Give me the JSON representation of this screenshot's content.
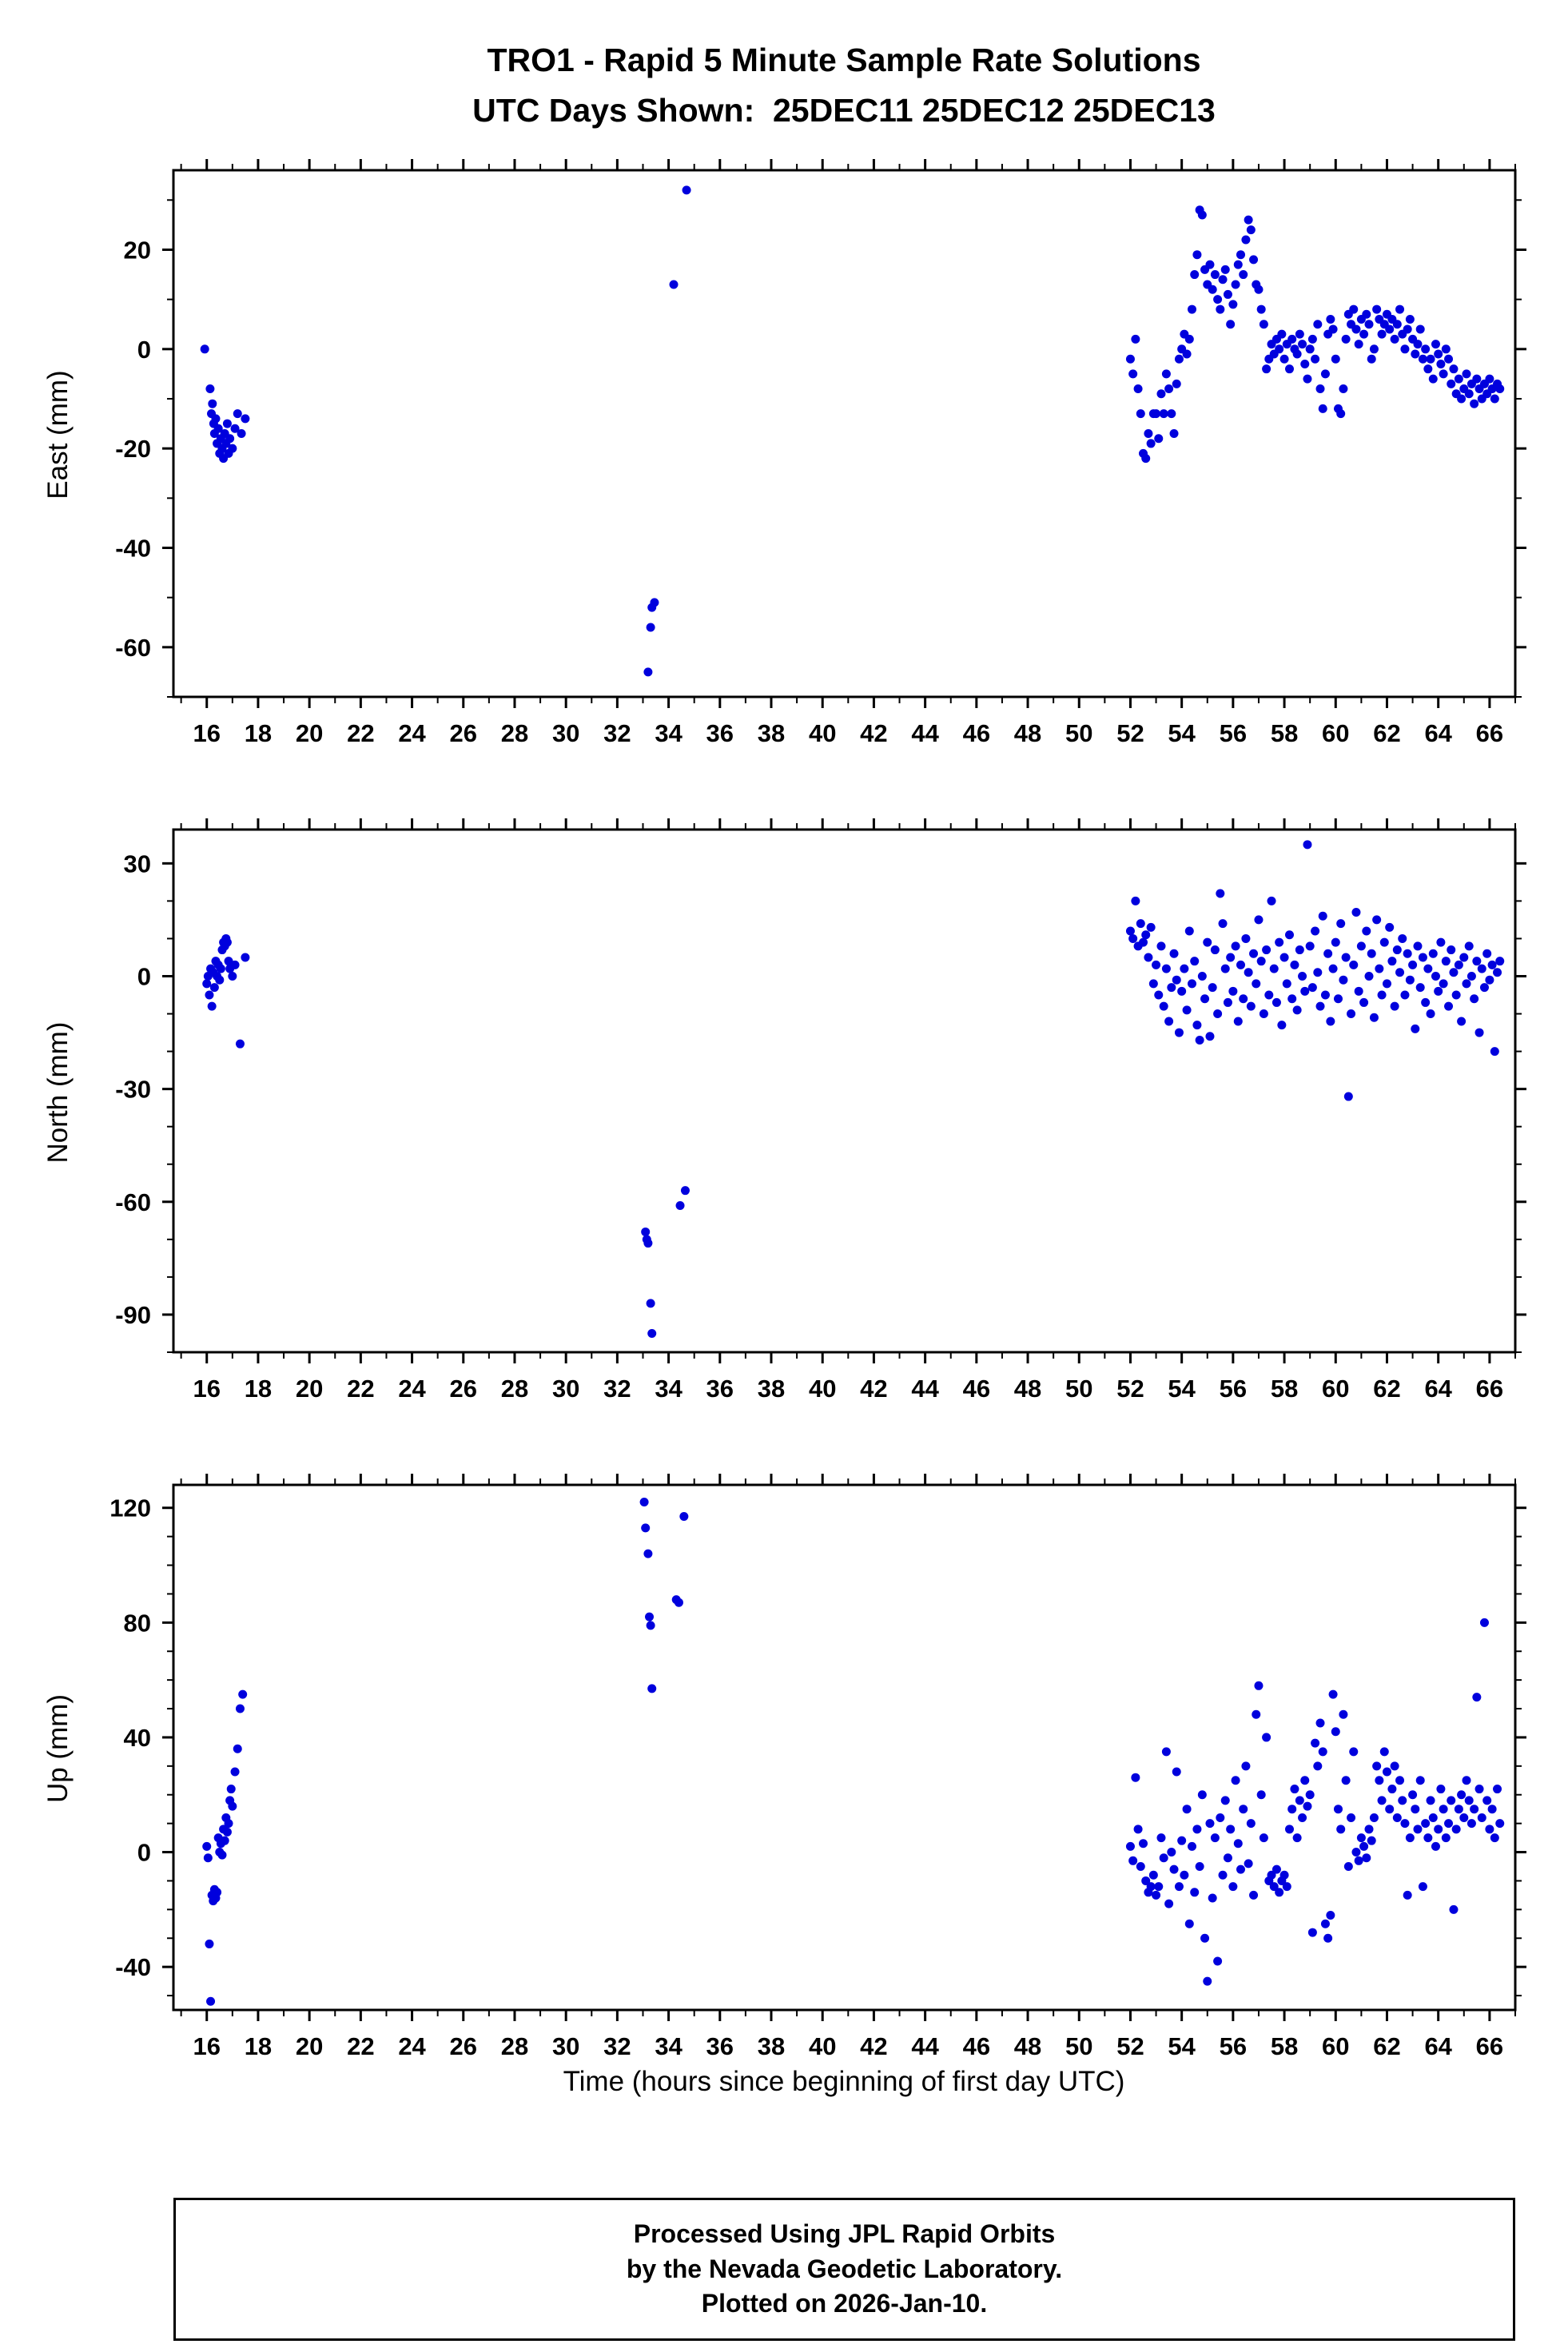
{
  "title": {
    "line1": "TRO1 - Rapid 5 Minute Sample Rate Solutions",
    "line2": "UTC Days Shown:  25DEC11 25DEC12 25DEC13"
  },
  "axis": {
    "xlabel": "Time (hours since beginning of first day UTC)"
  },
  "footer": {
    "line1": "Processed Using JPL Rapid Orbits",
    "line2": "by the Nevada Geodetic Laboratory.",
    "line3": "Plotted on 2026-Jan-10."
  },
  "colors": {
    "point": "#0000dd",
    "axis": "#000000",
    "background": "#ffffff"
  },
  "chart_data": {
    "type": "scatter",
    "point_color": "#0000dd",
    "x_axis": {
      "min": 14.7,
      "max": 67.0,
      "ticks": [
        16,
        18,
        20,
        22,
        24,
        26,
        28,
        30,
        32,
        34,
        36,
        38,
        40,
        42,
        44,
        46,
        48,
        50,
        52,
        54,
        56,
        58,
        60,
        62,
        64,
        66
      ],
      "minor_step": 1
    },
    "panels": [
      {
        "name": "east",
        "ylabel": "East (mm)",
        "ylim": [
          -70,
          36
        ],
        "yticks": [
          20,
          0,
          -20,
          -40,
          -60
        ],
        "yminor_step": 10,
        "points": [
          [
            15.92,
            0
          ],
          [
            16.13,
            -8
          ],
          [
            16.18,
            -13
          ],
          [
            16.22,
            -11
          ],
          [
            16.27,
            -15
          ],
          [
            16.3,
            -17
          ],
          [
            16.35,
            -14
          ],
          [
            16.4,
            -19
          ],
          [
            16.45,
            -16
          ],
          [
            16.5,
            -21
          ],
          [
            16.55,
            -18
          ],
          [
            16.6,
            -20
          ],
          [
            16.65,
            -22
          ],
          [
            16.7,
            -17
          ],
          [
            16.75,
            -19
          ],
          [
            16.8,
            -15
          ],
          [
            16.85,
            -21
          ],
          [
            16.9,
            -18
          ],
          [
            17.0,
            -20
          ],
          [
            17.1,
            -16
          ],
          [
            17.2,
            -13
          ],
          [
            17.35,
            -17
          ],
          [
            17.5,
            -14
          ],
          [
            33.2,
            -65
          ],
          [
            33.3,
            -56
          ],
          [
            33.35,
            -52
          ],
          [
            33.45,
            -51
          ],
          [
            34.2,
            13
          ],
          [
            34.7,
            32
          ]
        ],
        "trace": {
          "x0": 52.0,
          "dx": 0.1,
          "y": [
            -2,
            -5,
            2,
            -8,
            -13,
            -21,
            -22,
            -17,
            -19,
            -13,
            -13,
            -18,
            -9,
            -13,
            -5,
            -8,
            -13,
            -17,
            -7,
            -2,
            0,
            3,
            -1,
            2,
            8,
            15,
            19,
            28,
            27,
            16,
            13,
            17,
            12,
            15,
            10,
            8,
            14,
            16,
            11,
            5,
            9,
            13,
            17,
            19,
            15,
            22,
            26,
            24,
            18,
            13,
            12,
            8,
            5,
            -4,
            -2,
            1,
            -1,
            2,
            0,
            3,
            -2,
            1,
            -4,
            2,
            0,
            -1,
            3,
            1,
            -3,
            -6,
            0,
            2,
            -2,
            5,
            -8,
            -12,
            -5,
            3,
            6,
            4,
            -2,
            -12,
            -13,
            -8,
            2,
            7,
            5,
            8,
            4,
            1,
            6,
            3,
            7,
            5,
            -2,
            0,
            8,
            6,
            3,
            5,
            7,
            4,
            6,
            2,
            5,
            8,
            3,
            0,
            4,
            6,
            2,
            -1,
            1,
            4,
            -2,
            0,
            -4,
            -2,
            -6,
            1,
            -1,
            -3,
            -5,
            0,
            -2,
            -7,
            -4,
            -9,
            -6,
            -10,
            -8,
            -5,
            -9,
            -7,
            -11,
            -6,
            -8,
            -10,
            -7,
            -9,
            -6,
            -8,
            -10,
            -7,
            -8
          ]
        }
      },
      {
        "name": "north",
        "ylabel": "North (mm)",
        "ylim": [
          -100,
          39
        ],
        "yticks": [
          30,
          0,
          -30,
          -60,
          -90
        ],
        "yminor_step": 10,
        "points": [
          [
            16.0,
            -2
          ],
          [
            16.05,
            0
          ],
          [
            16.1,
            -5
          ],
          [
            16.15,
            2
          ],
          [
            16.2,
            -8
          ],
          [
            16.25,
            1
          ],
          [
            16.3,
            -3
          ],
          [
            16.35,
            4
          ],
          [
            16.4,
            0
          ],
          [
            16.45,
            3
          ],
          [
            16.5,
            -1
          ],
          [
            16.55,
            2
          ],
          [
            16.6,
            7
          ],
          [
            16.65,
            9
          ],
          [
            16.7,
            8
          ],
          [
            16.75,
            10
          ],
          [
            16.8,
            9
          ],
          [
            16.85,
            4
          ],
          [
            16.9,
            2
          ],
          [
            17.0,
            0
          ],
          [
            17.1,
            3
          ],
          [
            17.3,
            -18
          ],
          [
            17.5,
            5
          ],
          [
            33.1,
            -68
          ],
          [
            33.15,
            -70
          ],
          [
            33.2,
            -71
          ],
          [
            33.3,
            -87
          ],
          [
            33.35,
            -95
          ],
          [
            34.45,
            -61
          ],
          [
            34.65,
            -57
          ]
        ],
        "trace": {
          "x0": 52.0,
          "dx": 0.1,
          "y": [
            12,
            10,
            20,
            8,
            14,
            9,
            11,
            5,
            13,
            -2,
            3,
            -5,
            8,
            -8,
            2,
            -12,
            -3,
            6,
            -1,
            -15,
            -4,
            2,
            -9,
            12,
            -2,
            4,
            -13,
            -17,
            0,
            -6,
            9,
            -16,
            -3,
            7,
            -10,
            22,
            14,
            2,
            -7,
            5,
            -4,
            8,
            -12,
            3,
            -6,
            10,
            1,
            -8,
            6,
            -2,
            15,
            4,
            -10,
            7,
            -5,
            20,
            2,
            -7,
            9,
            -13,
            5,
            -2,
            11,
            -6,
            3,
            -9,
            7,
            0,
            -4,
            35,
            8,
            -3,
            12,
            1,
            -8,
            16,
            -5,
            6,
            -12,
            2,
            9,
            -6,
            14,
            -1,
            5,
            -32,
            -10,
            3,
            17,
            -4,
            8,
            -7,
            12,
            0,
            6,
            -11,
            15,
            2,
            -5,
            9,
            -2,
            13,
            4,
            -8,
            7,
            1,
            10,
            -5,
            6,
            -1,
            3,
            -14,
            8,
            -3,
            5,
            -7,
            2,
            -10,
            6,
            0,
            -4,
            9,
            -2,
            4,
            -8,
            7,
            1,
            -5,
            3,
            -12,
            5,
            -2,
            8,
            0,
            -6,
            4,
            -15,
            2,
            -3,
            6,
            -1,
            3,
            -20,
            1,
            4
          ]
        }
      },
      {
        "name": "up",
        "ylabel": "Up (mm)",
        "ylim": [
          -55,
          128
        ],
        "yticks": [
          120,
          80,
          40,
          0,
          -40
        ],
        "yminor_step": 10,
        "points": [
          [
            16.0,
            2
          ],
          [
            16.05,
            -2
          ],
          [
            16.1,
            -32
          ],
          [
            16.15,
            -52
          ],
          [
            16.2,
            -15
          ],
          [
            16.25,
            -17
          ],
          [
            16.3,
            -13
          ],
          [
            16.35,
            -16
          ],
          [
            16.4,
            -14
          ],
          [
            16.45,
            5
          ],
          [
            16.5,
            0
          ],
          [
            16.55,
            3
          ],
          [
            16.6,
            -1
          ],
          [
            16.65,
            8
          ],
          [
            16.7,
            4
          ],
          [
            16.75,
            12
          ],
          [
            16.8,
            7
          ],
          [
            16.85,
            10
          ],
          [
            16.9,
            18
          ],
          [
            16.95,
            22
          ],
          [
            17.0,
            16
          ],
          [
            17.1,
            28
          ],
          [
            17.2,
            36
          ],
          [
            17.3,
            50
          ],
          [
            17.4,
            55
          ],
          [
            33.05,
            122
          ],
          [
            33.1,
            113
          ],
          [
            33.2,
            104
          ],
          [
            33.25,
            82
          ],
          [
            33.3,
            79
          ],
          [
            33.35,
            57
          ],
          [
            34.3,
            88
          ],
          [
            34.4,
            87
          ],
          [
            34.6,
            117
          ]
        ],
        "trace": {
          "x0": 52.0,
          "dx": 0.1,
          "y": [
            2,
            -3,
            26,
            8,
            -5,
            3,
            -10,
            -14,
            -12,
            -8,
            -15,
            -12,
            5,
            -2,
            35,
            -18,
            0,
            -6,
            28,
            -12,
            4,
            -8,
            15,
            -25,
            2,
            -14,
            8,
            -5,
            20,
            -30,
            -45,
            10,
            -16,
            5,
            -38,
            12,
            -8,
            18,
            -2,
            8,
            -12,
            25,
            3,
            -6,
            15,
            30,
            -4,
            10,
            -15,
            48,
            58,
            20,
            5,
            40,
            -10,
            -8,
            -12,
            -6,
            -14,
            -10,
            -8,
            -12,
            8,
            15,
            22,
            5,
            18,
            12,
            25,
            16,
            20,
            -28,
            38,
            30,
            45,
            35,
            -25,
            -30,
            -22,
            55,
            42,
            15,
            8,
            48,
            25,
            -5,
            12,
            35,
            0,
            -3,
            5,
            2,
            -2,
            8,
            4,
            12,
            30,
            25,
            18,
            35,
            28,
            15,
            22,
            30,
            12,
            25,
            18,
            10,
            -15,
            5,
            20,
            15,
            8,
            25,
            -12,
            10,
            5,
            18,
            12,
            2,
            8,
            22,
            15,
            5,
            10,
            18,
            -20,
            8,
            15,
            20,
            12,
            25,
            18,
            10,
            15,
            54,
            22,
            12,
            80,
            18,
            8,
            15,
            5,
            22,
            10
          ]
        }
      }
    ]
  }
}
